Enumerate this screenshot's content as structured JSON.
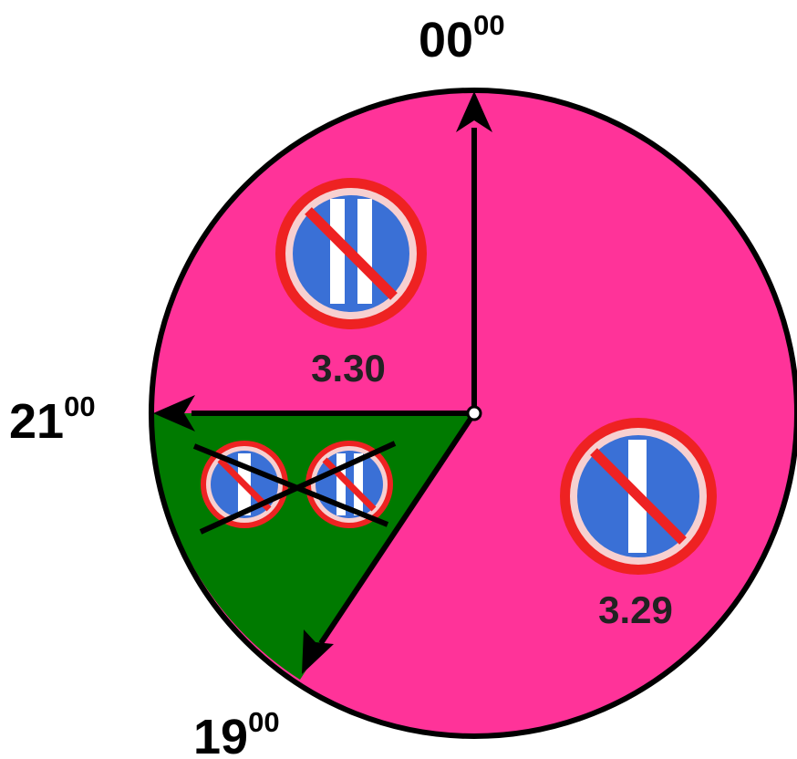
{
  "diagram": {
    "time_labels": {
      "t00": {
        "hours": "00",
        "minutes": "00"
      },
      "t21": {
        "hours": "21",
        "minutes": "00"
      },
      "t19": {
        "hours": "19",
        "minutes": "00"
      }
    },
    "sectors": {
      "night": {
        "sign_code": "3.30",
        "sign_icon": "no-parking-even-odd-days-icon"
      },
      "evening": {
        "sign_icon": "crossed-out-no-parking-signs-icon"
      },
      "day": {
        "sign_code": "3.29",
        "sign_icon": "no-parking-odd-days-icon"
      }
    },
    "colors": {
      "restricted": "#ff3399",
      "allowed": "#007a00",
      "outline": "#000000",
      "sign_blue": "#3a70d6",
      "sign_red": "#ee2222"
    }
  }
}
